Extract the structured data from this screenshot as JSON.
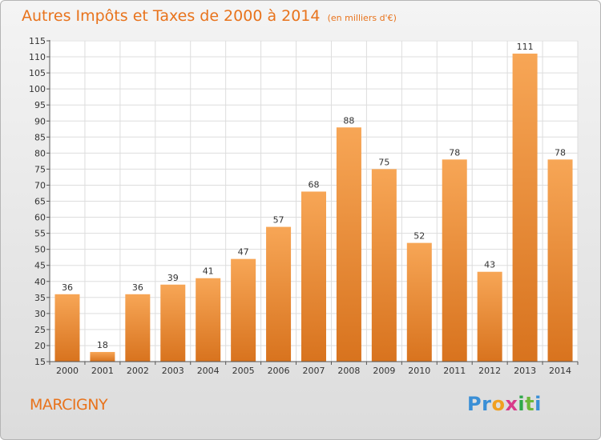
{
  "title": "Autres Impôts et Taxes de 2000 à 2014",
  "subtitle": "(en milliers d'€)",
  "commune": "MARCIGNY",
  "logo": {
    "letters": [
      "P",
      "r",
      "o",
      "x",
      "i",
      "t",
      "i"
    ]
  },
  "colors": {
    "accent": "#e8731c",
    "bar_top": "#f7a656",
    "bar_bottom": "#d8731e"
  },
  "chart_data": {
    "type": "bar",
    "title": "Autres Impôts et Taxes de 2000 à 2014",
    "subtitle": "(en milliers d'€)",
    "categories": [
      "2000",
      "2001",
      "2002",
      "2003",
      "2004",
      "2005",
      "2006",
      "2007",
      "2008",
      "2009",
      "2010",
      "2011",
      "2012",
      "2013",
      "2014"
    ],
    "values": [
      36,
      18,
      36,
      39,
      41,
      47,
      57,
      68,
      88,
      75,
      52,
      78,
      43,
      111,
      78
    ],
    "ylim": [
      15,
      115
    ],
    "yticks": [
      15,
      20,
      25,
      30,
      35,
      40,
      45,
      50,
      55,
      60,
      65,
      70,
      75,
      80,
      85,
      90,
      95,
      100,
      105,
      110,
      115
    ],
    "grid": true,
    "data_labels": true
  }
}
